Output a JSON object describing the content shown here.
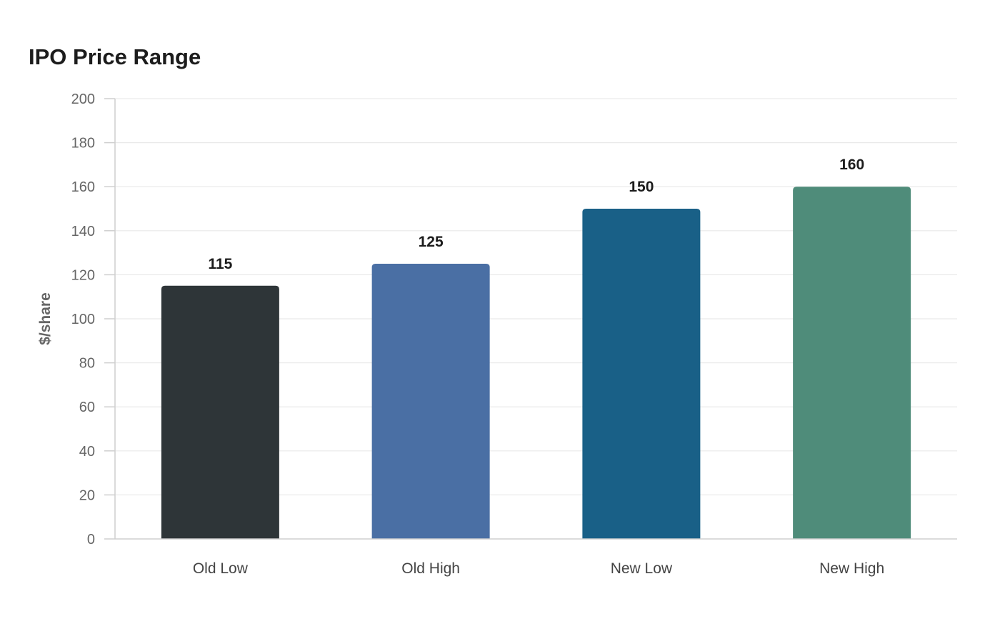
{
  "chart_data": {
    "type": "bar",
    "title": "IPO Price Range",
    "xlabel": "",
    "ylabel": "$/share",
    "categories": [
      "Old Low",
      "Old High",
      "New Low",
      "New High"
    ],
    "values": [
      115,
      125,
      150,
      160
    ],
    "ylim": [
      0,
      200
    ],
    "yticks": [
      0,
      20,
      40,
      60,
      80,
      100,
      120,
      140,
      160,
      180,
      200
    ],
    "bar_colors": [
      "#2e3538",
      "#4a6fa4",
      "#196087",
      "#4f8c7a"
    ],
    "grid": true,
    "legend": "none"
  }
}
